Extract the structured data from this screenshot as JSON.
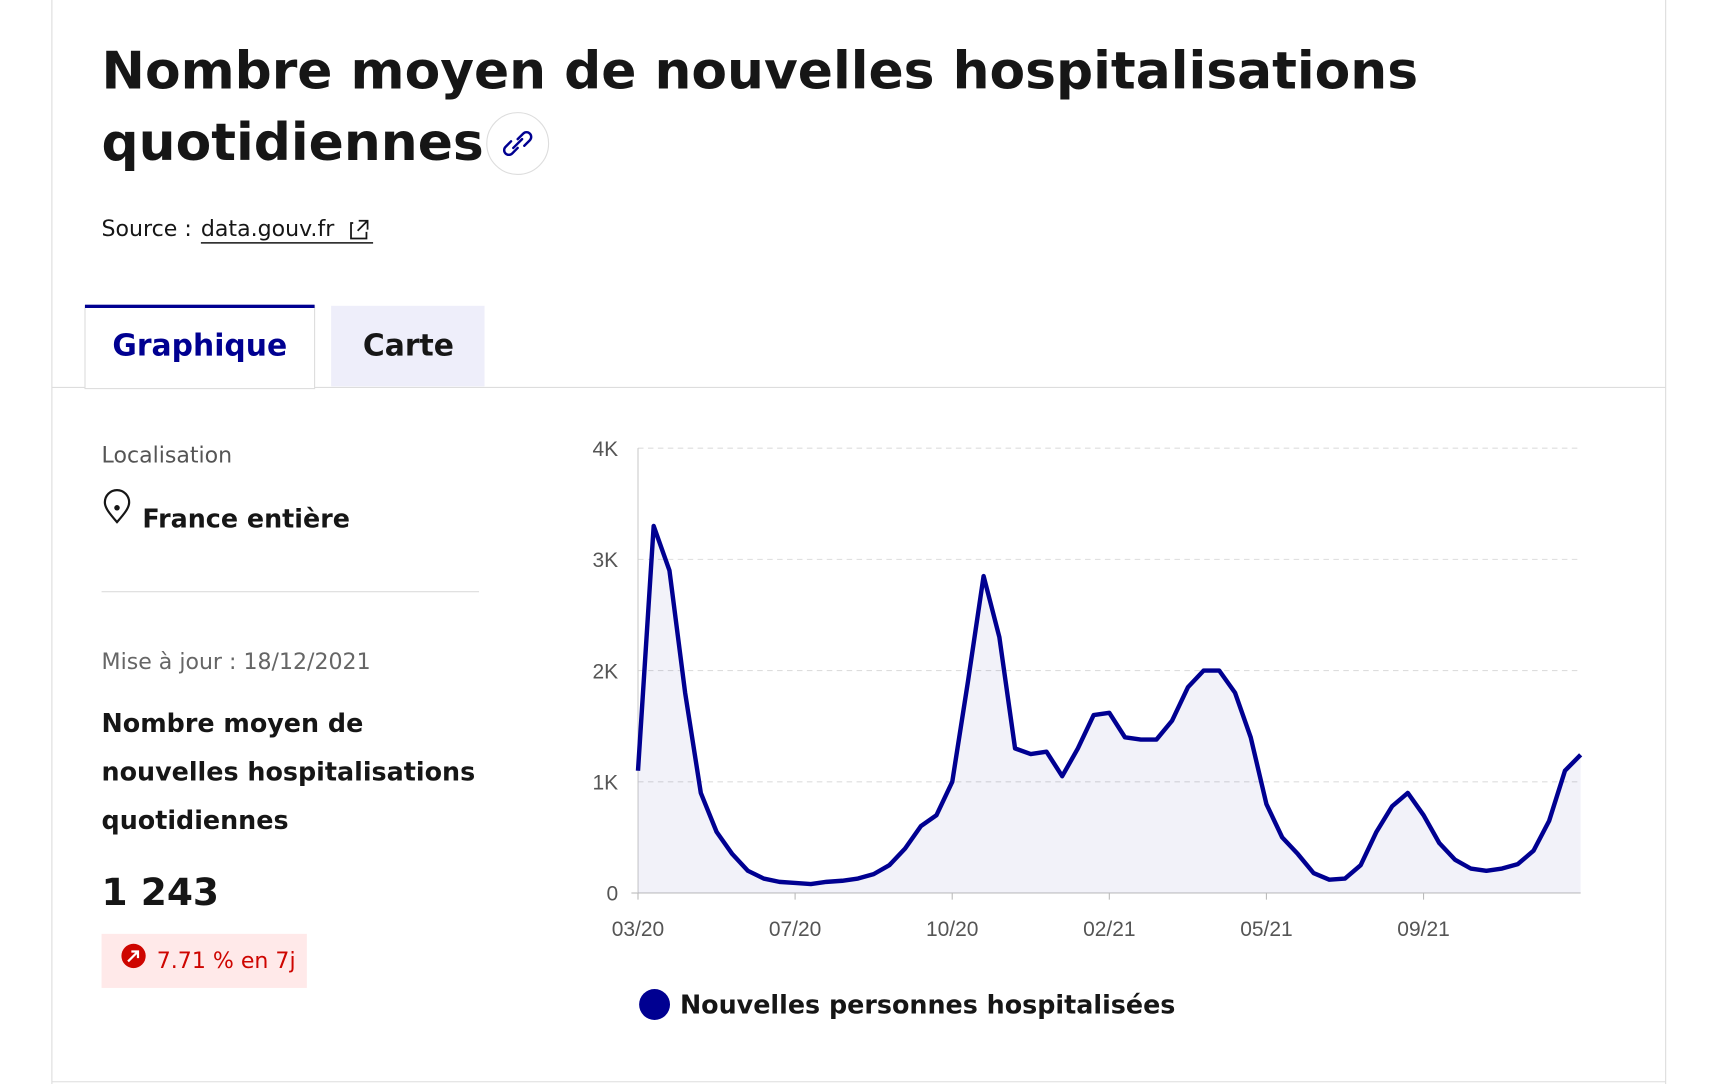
{
  "header": {
    "title_lines": [
      "Nombre moyen de nouvelles hospitalisations",
      "quotidiennes"
    ],
    "source_label": "Source :",
    "source_link": "data.gouv.fr"
  },
  "tabs": [
    "Graphique",
    "Carte"
  ],
  "sidebar": {
    "location_label": "Localisation",
    "location": "France entière",
    "updated": "Mise à jour : 18/12/2021",
    "indicator_lines": [
      "Nombre moyen de",
      "nouvelles hospitalisations",
      "quotidiennes"
    ],
    "value": "1 243",
    "trend": "7.71 % en 7j"
  },
  "chart_data": {
    "type": "line",
    "categories": [
      "03/20",
      null,
      null,
      null,
      null,
      null,
      null,
      null,
      null,
      null,
      "07/20",
      null,
      null,
      null,
      null,
      null,
      null,
      null,
      null,
      null,
      "10/20",
      null,
      null,
      null,
      null,
      null,
      null,
      null,
      null,
      null,
      "02/21",
      null,
      null,
      null,
      null,
      null,
      null,
      null,
      null,
      null,
      "05/21",
      null,
      null,
      null,
      null,
      null,
      null,
      null,
      null,
      null,
      "09/21",
      null,
      null,
      null,
      null,
      null,
      null,
      null,
      null,
      null,
      null
    ],
    "series": [
      {
        "name": "Nouvelles personnes hospitalisées",
        "color": "#000091",
        "values": [
          1100,
          3300,
          2900,
          1800,
          900,
          550,
          350,
          200,
          130,
          100,
          90,
          80,
          100,
          110,
          130,
          170,
          250,
          400,
          600,
          700,
          1000,
          1900,
          2850,
          2300,
          1300,
          1250,
          1270,
          1050,
          1300,
          1600,
          1620,
          1400,
          1380,
          1380,
          1550,
          1850,
          2000,
          2000,
          1800,
          1400,
          800,
          500,
          350,
          180,
          120,
          130,
          250,
          550,
          780,
          900,
          700,
          450,
          300,
          220,
          200,
          220,
          260,
          380,
          650,
          1100,
          1243
        ]
      }
    ],
    "ylim": [
      0,
      4000
    ],
    "yticks": [
      0,
      {
        "value": 1000,
        "label": "1K"
      },
      {
        "value": 2000,
        "label": "2K"
      },
      {
        "value": 3000,
        "label": "3K"
      },
      {
        "value": 4000,
        "label": "4K"
      }
    ],
    "grid": true
  }
}
